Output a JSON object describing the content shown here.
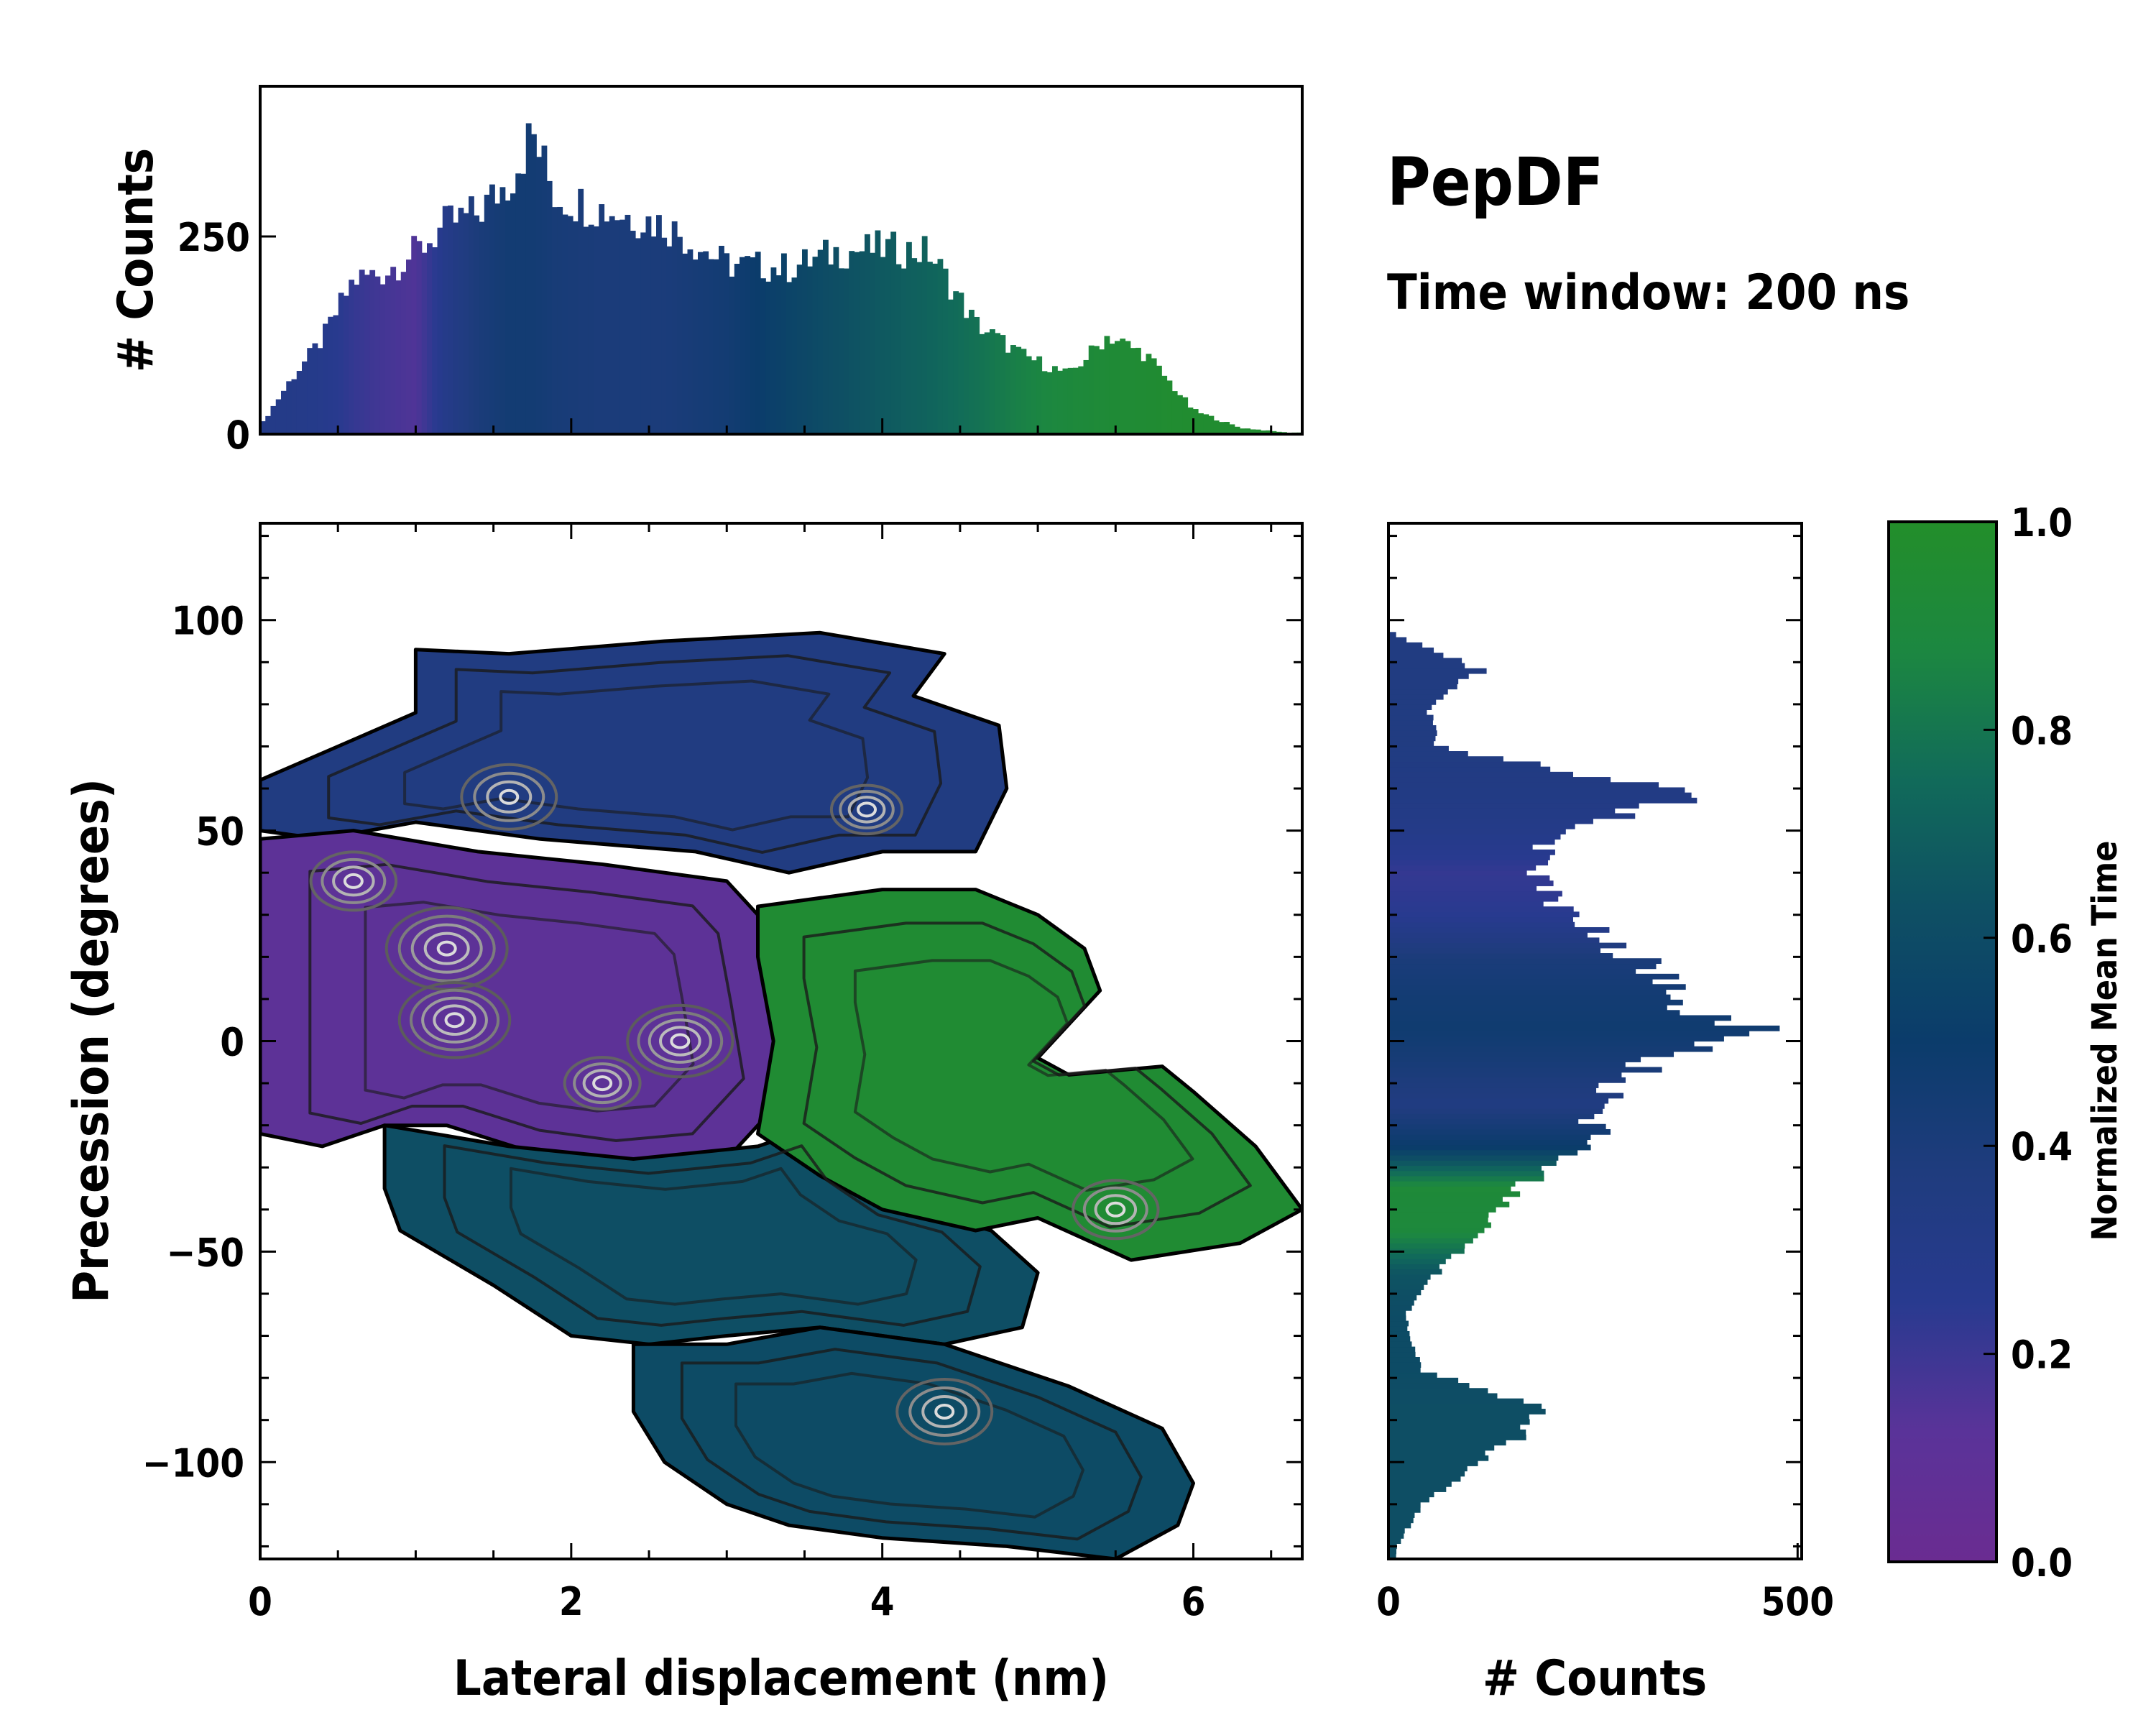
{
  "title": "PepDF",
  "subtitle": "Time window: 200 ns",
  "colors": {
    "cmap": [
      "#6a2c91",
      "#5a3399",
      "#283a8f",
      "#1f3c7e",
      "#0b3c6b",
      "#0e4f64",
      "#116a5a",
      "#1c8741",
      "#238e2a"
    ],
    "contour_dark": "#1a1a1a",
    "contour_light": "#cfcfcf"
  },
  "chart_data": [
    {
      "id": "top-histogram",
      "type": "bar",
      "xlabel": "",
      "ylabel": "# Counts",
      "xlim": [
        0,
        6.7
      ],
      "ylim": [
        0,
        440
      ],
      "yticks": [
        0,
        250
      ],
      "ytick_labels": [
        "0",
        "250"
      ],
      "color_by": "normalized mean time",
      "profile": [
        {
          "x": 0.0,
          "y": 10,
          "t": 0.3
        },
        {
          "x": 0.2,
          "y": 70,
          "t": 0.3
        },
        {
          "x": 0.4,
          "y": 120,
          "t": 0.28
        },
        {
          "x": 0.6,
          "y": 195,
          "t": 0.22
        },
        {
          "x": 0.8,
          "y": 205,
          "t": 0.18
        },
        {
          "x": 1.0,
          "y": 230,
          "t": 0.15
        },
        {
          "x": 1.2,
          "y": 265,
          "t": 0.3
        },
        {
          "x": 1.4,
          "y": 280,
          "t": 0.4
        },
        {
          "x": 1.6,
          "y": 320,
          "t": 0.45
        },
        {
          "x": 1.75,
          "y": 380,
          "t": 0.45
        },
        {
          "x": 1.9,
          "y": 300,
          "t": 0.42
        },
        {
          "x": 2.2,
          "y": 285,
          "t": 0.4
        },
        {
          "x": 2.6,
          "y": 265,
          "t": 0.4
        },
        {
          "x": 3.0,
          "y": 215,
          "t": 0.45
        },
        {
          "x": 3.4,
          "y": 210,
          "t": 0.55
        },
        {
          "x": 3.7,
          "y": 230,
          "t": 0.62
        },
        {
          "x": 4.0,
          "y": 235,
          "t": 0.67
        },
        {
          "x": 4.3,
          "y": 230,
          "t": 0.72
        },
        {
          "x": 4.6,
          "y": 140,
          "t": 0.78
        },
        {
          "x": 4.9,
          "y": 100,
          "t": 0.85
        },
        {
          "x": 5.2,
          "y": 75,
          "t": 0.9
        },
        {
          "x": 5.45,
          "y": 125,
          "t": 0.93
        },
        {
          "x": 5.7,
          "y": 100,
          "t": 0.95
        },
        {
          "x": 6.0,
          "y": 30,
          "t": 0.97
        },
        {
          "x": 6.3,
          "y": 8,
          "t": 0.97
        },
        {
          "x": 6.6,
          "y": 2,
          "t": 0.97
        }
      ]
    },
    {
      "id": "main-heatmap",
      "type": "heatmap",
      "xlabel": "Lateral displacement (nm)",
      "ylabel": "Precession (degrees)",
      "xlim": [
        0,
        6.7
      ],
      "ylim": [
        -123,
        123
      ],
      "xticks": [
        0,
        2,
        4,
        6
      ],
      "xtick_labels": [
        "0",
        "2",
        "4",
        "6"
      ],
      "yticks": [
        100,
        50,
        0,
        -50,
        -100
      ],
      "ytick_labels": [
        "100",
        "50",
        "0",
        "−50",
        "−100"
      ],
      "color_by": "normalized mean time",
      "regions": [
        {
          "name": "upper-blue",
          "t": 0.35,
          "points": [
            [
              0,
              62
            ],
            [
              0.5,
              70
            ],
            [
              1.0,
              78
            ],
            [
              1.0,
              93
            ],
            [
              1.6,
              92
            ],
            [
              2.6,
              95
            ],
            [
              3.6,
              97
            ],
            [
              4.4,
              92
            ],
            [
              4.2,
              82
            ],
            [
              4.75,
              75
            ],
            [
              4.8,
              60
            ],
            [
              4.6,
              45
            ],
            [
              4.0,
              45
            ],
            [
              3.4,
              40
            ],
            [
              2.8,
              45
            ],
            [
              1.8,
              48
            ],
            [
              1.0,
              52
            ],
            [
              0.4,
              48
            ],
            [
              0,
              50
            ]
          ]
        },
        {
          "name": "purple-core",
          "t": 0.1,
          "points": [
            [
              0,
              48
            ],
            [
              0.6,
              50
            ],
            [
              1.4,
              45
            ],
            [
              2.2,
              42
            ],
            [
              3.0,
              38
            ],
            [
              3.2,
              30
            ],
            [
              3.3,
              10
            ],
            [
              3.4,
              -12
            ],
            [
              3.0,
              -28
            ],
            [
              2.4,
              -30
            ],
            [
              1.8,
              -27
            ],
            [
              1.2,
              -20
            ],
            [
              0.8,
              -20
            ],
            [
              0.4,
              -25
            ],
            [
              0,
              -22
            ]
          ]
        },
        {
          "name": "teal-middle",
          "t": 0.62,
          "points": [
            [
              0.8,
              -20
            ],
            [
              1.6,
              -25
            ],
            [
              2.4,
              -28
            ],
            [
              3.2,
              -25
            ],
            [
              3.6,
              -20
            ],
            [
              3.8,
              -30
            ],
            [
              4.2,
              -40
            ],
            [
              4.7,
              -45
            ],
            [
              5.0,
              -55
            ],
            [
              4.9,
              -68
            ],
            [
              4.4,
              -72
            ],
            [
              3.6,
              -68
            ],
            [
              3.0,
              -70
            ],
            [
              2.5,
              -72
            ],
            [
              2.0,
              -70
            ],
            [
              1.5,
              -58
            ],
            [
              0.9,
              -45
            ],
            [
              0.8,
              -35
            ]
          ]
        },
        {
          "name": "green-right",
          "t": 0.95,
          "points": [
            [
              3.2,
              32
            ],
            [
              4.0,
              36
            ],
            [
              4.6,
              36
            ],
            [
              5.0,
              30
            ],
            [
              5.3,
              22
            ],
            [
              5.4,
              12
            ],
            [
              5.2,
              4
            ],
            [
              5.0,
              -4
            ],
            [
              5.2,
              -8
            ],
            [
              5.8,
              -6
            ],
            [
              6.0,
              -12
            ],
            [
              6.4,
              -25
            ],
            [
              6.7,
              -40
            ],
            [
              6.3,
              -48
            ],
            [
              5.6,
              -52
            ],
            [
              5.0,
              -42
            ],
            [
              4.6,
              -45
            ],
            [
              4.0,
              -40
            ],
            [
              3.6,
              -32
            ],
            [
              3.2,
              -22
            ],
            [
              3.3,
              0
            ],
            [
              3.2,
              20
            ]
          ]
        },
        {
          "name": "lower-teal",
          "t": 0.6,
          "points": [
            [
              2.4,
              -72
            ],
            [
              3.0,
              -72
            ],
            [
              3.6,
              -68
            ],
            [
              4.4,
              -72
            ],
            [
              5.2,
              -82
            ],
            [
              5.8,
              -92
            ],
            [
              6.0,
              -105
            ],
            [
              5.9,
              -115
            ],
            [
              5.5,
              -123
            ],
            [
              4.8,
              -120
            ],
            [
              4.0,
              -118
            ],
            [
              3.4,
              -115
            ],
            [
              3.0,
              -110
            ],
            [
              2.6,
              -100
            ],
            [
              2.4,
              -88
            ]
          ]
        }
      ],
      "hotspots": [
        {
          "x": 1.2,
          "y": 22,
          "level": 1.0
        },
        {
          "x": 1.25,
          "y": 5,
          "level": 0.9
        },
        {
          "x": 1.6,
          "y": 58,
          "level": 0.8
        },
        {
          "x": 2.7,
          "y": 0,
          "level": 0.85
        },
        {
          "x": 0.6,
          "y": 38,
          "level": 0.7
        },
        {
          "x": 4.4,
          "y": -88,
          "level": 0.8
        },
        {
          "x": 5.5,
          "y": -40,
          "level": 0.7
        },
        {
          "x": 3.9,
          "y": 55,
          "level": 0.55
        },
        {
          "x": 2.2,
          "y": -10,
          "level": 0.6
        }
      ]
    },
    {
      "id": "right-histogram",
      "type": "bar",
      "orientation": "horizontal",
      "xlabel": "# Counts",
      "ylabel": "",
      "xlim": [
        0,
        505
      ],
      "ylim": [
        -123,
        123
      ],
      "xticks": [
        0,
        500
      ],
      "xtick_labels": [
        "0",
        "500"
      ],
      "color_by": "normalized mean time",
      "profile": [
        {
          "y": 97,
          "x": 5,
          "t": 0.35
        },
        {
          "y": 88,
          "x": 110,
          "t": 0.35
        },
        {
          "y": 80,
          "x": 50,
          "t": 0.35
        },
        {
          "y": 70,
          "x": 60,
          "t": 0.35
        },
        {
          "y": 58,
          "x": 380,
          "t": 0.33
        },
        {
          "y": 50,
          "x": 200,
          "t": 0.3
        },
        {
          "y": 40,
          "x": 180,
          "t": 0.22
        },
        {
          "y": 30,
          "x": 220,
          "t": 0.25
        },
        {
          "y": 20,
          "x": 300,
          "t": 0.4
        },
        {
          "y": 10,
          "x": 350,
          "t": 0.45
        },
        {
          "y": 3,
          "x": 440,
          "t": 0.47
        },
        {
          "y": -5,
          "x": 320,
          "t": 0.42
        },
        {
          "y": -15,
          "x": 250,
          "t": 0.35
        },
        {
          "y": -25,
          "x": 250,
          "t": 0.5
        },
        {
          "y": -35,
          "x": 160,
          "t": 0.92
        },
        {
          "y": -45,
          "x": 120,
          "t": 0.9
        },
        {
          "y": -55,
          "x": 60,
          "t": 0.65
        },
        {
          "y": -65,
          "x": 20,
          "t": 0.6
        },
        {
          "y": -78,
          "x": 40,
          "t": 0.6
        },
        {
          "y": -88,
          "x": 190,
          "t": 0.62
        },
        {
          "y": -98,
          "x": 130,
          "t": 0.62
        },
        {
          "y": -110,
          "x": 40,
          "t": 0.62
        },
        {
          "y": -120,
          "x": 10,
          "t": 0.62
        }
      ]
    },
    {
      "id": "colorbar",
      "type": "colorbar",
      "label": "Normalized Mean Time",
      "range": [
        0,
        1
      ],
      "ticks": [
        0,
        0.2,
        0.4,
        0.6,
        0.8,
        1.0
      ],
      "tick_labels": [
        "0.0",
        "0.2",
        "0.4",
        "0.6",
        "0.8",
        "1.0"
      ]
    }
  ]
}
